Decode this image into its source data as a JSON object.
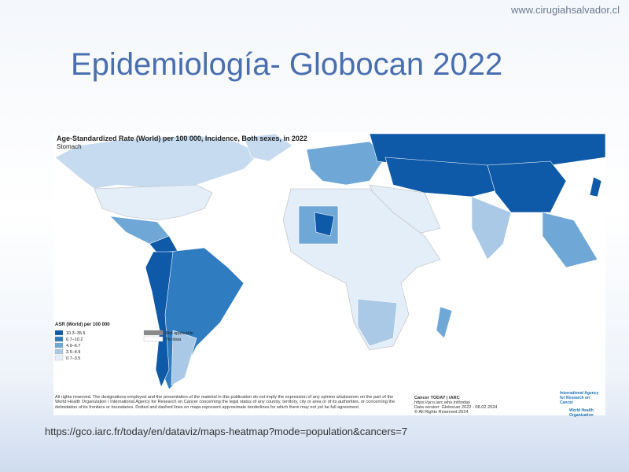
{
  "header": {
    "site": "www.cirugiahsalvador.cl",
    "title": "Epidemiología- Globocan 2022"
  },
  "map": {
    "title": "Age-Standardized Rate (World) per 100 000, Incidence, Both sexes, in 2022",
    "subtitle": "Stomach",
    "legend": {
      "title": "ASR (World) per 100 000",
      "items": [
        {
          "label": "10.3–35.5",
          "color": "#0f5aa8"
        },
        {
          "label": "6.7–10.2",
          "color": "#2f7cc0"
        },
        {
          "label": "4.9–6.7",
          "color": "#6fa8d6"
        },
        {
          "label": "3.5–4.9",
          "color": "#a9c9e6"
        },
        {
          "label": "0.7–3.5",
          "color": "#e4eef8"
        }
      ],
      "extra": [
        {
          "label": "Not applicable",
          "color": "#8a8a8a"
        },
        {
          "label": "No data",
          "color": "#ffffff"
        }
      ]
    },
    "disclaimer": "All rights reserved. The designations employed and the presentation of the material in this publication do not imply the expression of any opinion whatsoever on the part of the World Health Organization / International Agency for Research on Cancer concerning the legal status of any country, territory, city or area or of its authorities, or concerning the delimitation of its frontiers or boundaries. Dotted and dashed lines on maps represent approximate borderlines for which there may not yet be full agreement.",
    "source": [
      "Cancer TODAY | IARC",
      "https://gco.iarc.who.int/today",
      "Data version: Globocan 2022 - 08.02.2024",
      "© All Rights Reserved 2024"
    ],
    "logo": [
      "International Agency for Research on Cancer",
      "World Health Organization"
    ]
  },
  "footer": {
    "url": "https://gco.iarc.fr/today/en/dataviz/maps-heatmap?mode=population&cancers=7"
  }
}
